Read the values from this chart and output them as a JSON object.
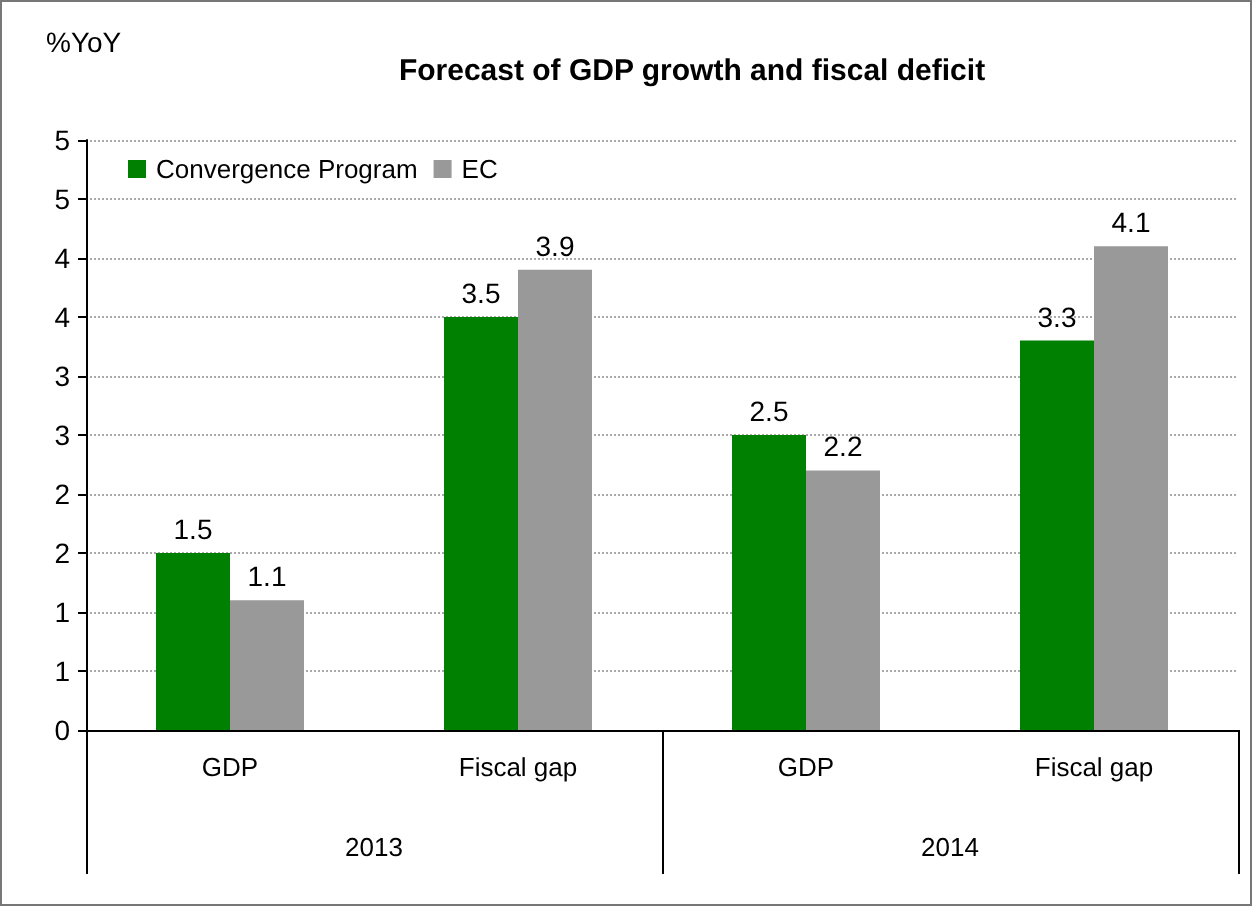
{
  "chart_data": {
    "type": "bar",
    "title": "Forecast of GDP growth and fiscal deficit",
    "ylabel": "%YoY",
    "categories": [
      "GDP",
      "Fiscal gap",
      "GDP",
      "Fiscal gap"
    ],
    "series": [
      {
        "name": "Convergence Program",
        "color": "#008000",
        "values": [
          1.5,
          3.5,
          2.5,
          3.3
        ]
      },
      {
        "name": "EC",
        "color": "#999999",
        "values": [
          1.1,
          3.9,
          2.2,
          4.1
        ]
      }
    ],
    "annotations": [
      "2013",
      "2014"
    ],
    "ylim": [
      0,
      5
    ],
    "yticks": [
      0,
      {
        "value": 0.5,
        "label": "1"
      },
      1,
      {
        "value": 1.5,
        "label": "2"
      },
      2,
      {
        "value": 2.5,
        "label": "3"
      },
      3,
      {
        "value": 3.5,
        "label": "4"
      },
      4,
      {
        "value": 4.5,
        "label": "5"
      },
      5
    ],
    "grid": "y",
    "legend": "top left",
    "data_labels": true
  }
}
